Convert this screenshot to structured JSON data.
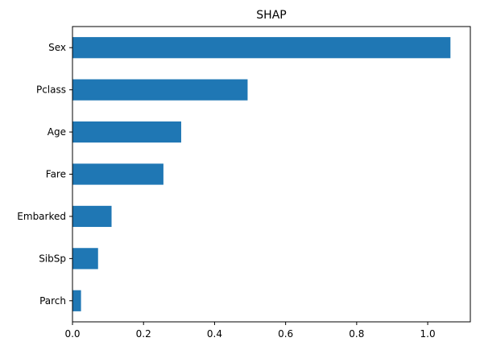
{
  "chart_data": {
    "type": "bar",
    "orientation": "horizontal",
    "title": "SHAP",
    "xlabel": "",
    "ylabel": "",
    "categories": [
      "Sex",
      "Pclass",
      "Age",
      "Fare",
      "Embarked",
      "SibSp",
      "Parch"
    ],
    "values": [
      1.064,
      0.493,
      0.306,
      0.256,
      0.11,
      0.072,
      0.024
    ],
    "xlim": [
      0,
      1.12
    ],
    "xticks": [
      "0.0",
      "0.2",
      "0.4",
      "0.6",
      "0.8",
      "1.0"
    ],
    "xtick_values": [
      0,
      0.2,
      0.4,
      0.6,
      0.8,
      1.0
    ],
    "grid": false,
    "legend": "none",
    "bar_color": "#1f77b4"
  }
}
